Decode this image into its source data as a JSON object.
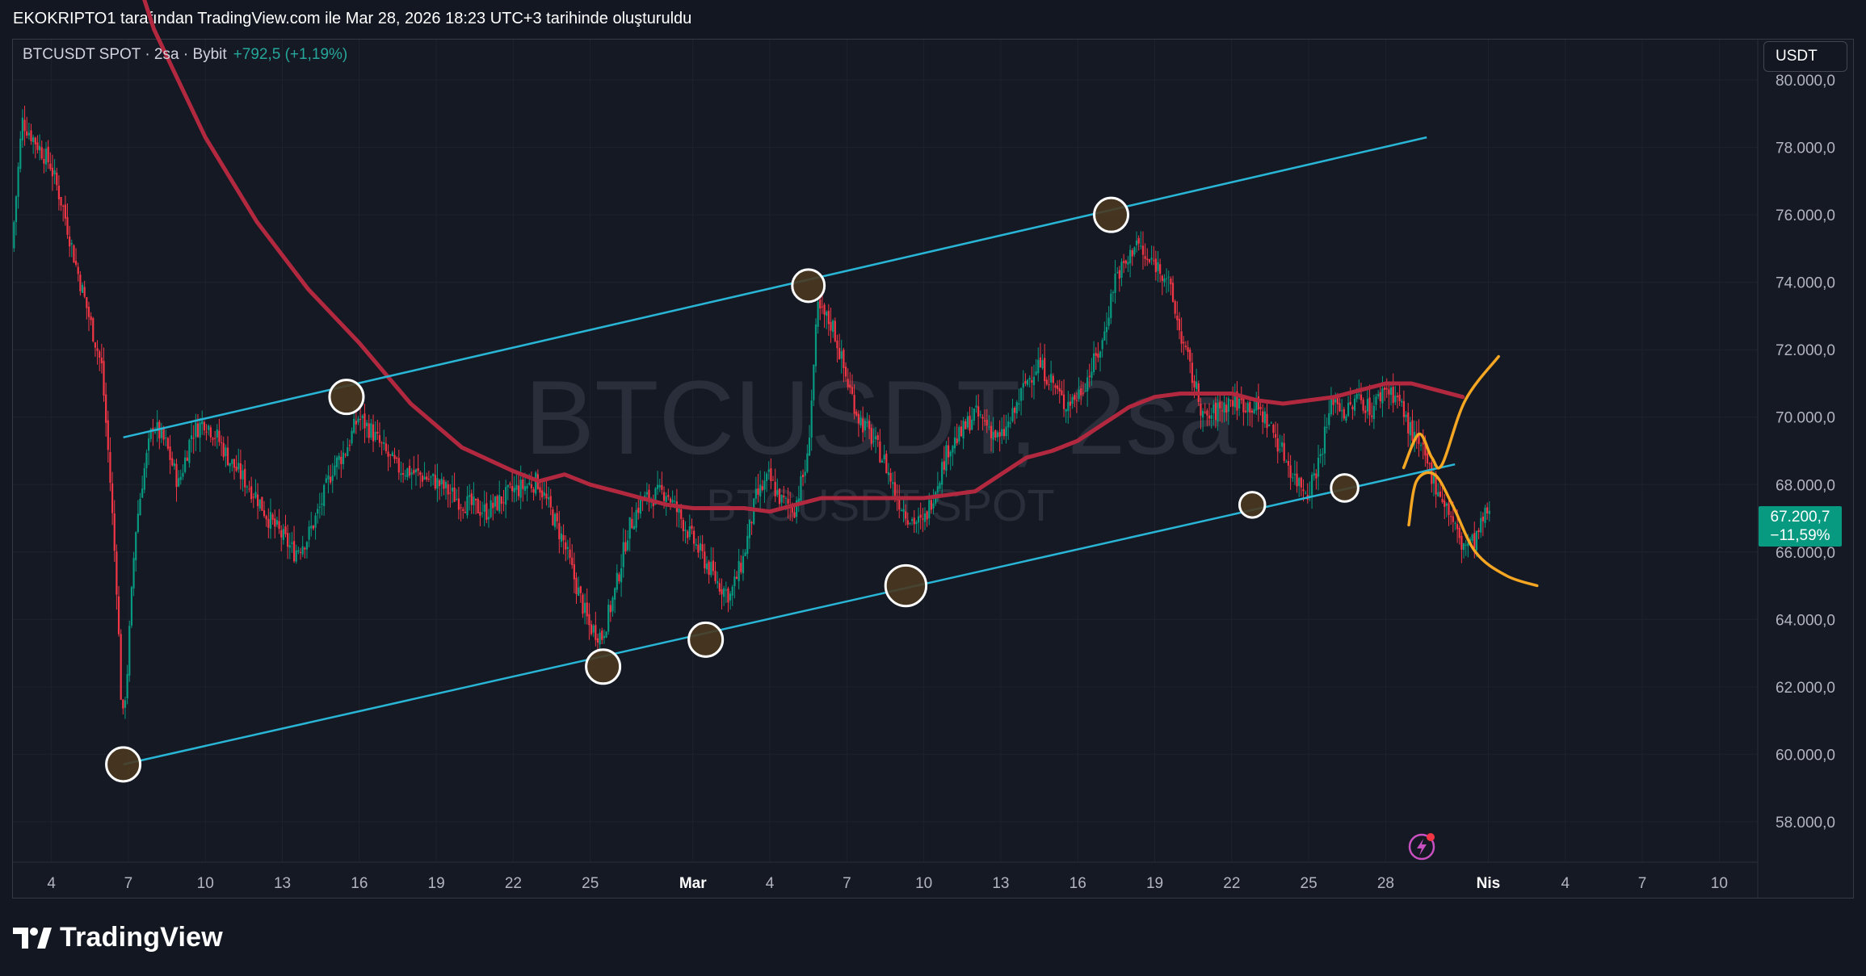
{
  "header": {
    "credit": "EKOKRIPTO1 tarafından TradingView.com ile Mar 28, 2026 18:23 UTC+3 tarihinde oluşturuldu"
  },
  "symbol_bar": {
    "symbol": "BTCUSDT SPOT · 2sa · Bybit",
    "change": "+792,5 (+1,19%)"
  },
  "currency_button": "USDT",
  "last_price": {
    "price": "67.200,7",
    "change_pct": "−11,59%"
  },
  "watermark": {
    "line1": "BTCUSDT, 2sa",
    "line2": "BTCUSDT SPOT"
  },
  "footer": {
    "brand": "TradingView"
  },
  "colors": {
    "background": "#151924",
    "up_candle": "#089981",
    "down_candle": "#f23645",
    "ma_line": "#b2283f",
    "channel_line": "#29b6d6",
    "scenario_curve": "#f5a623",
    "marker_fill": "#4a3820",
    "price_badge": "#089981"
  },
  "chart_data": {
    "type": "candlestick",
    "title": "BTCUSDT, 2sa",
    "y_axis": {
      "ticks": [
        "80.000,0",
        "78.000,0",
        "76.000,0",
        "74.000,0",
        "72.000,0",
        "70.000,0",
        "68.000,0",
        "66.000,0",
        "64.000,0",
        "62.000,0",
        "60.000,0",
        "58.000,0"
      ],
      "tick_values": [
        80000,
        78000,
        76000,
        74000,
        72000,
        70000,
        68000,
        66000,
        64000,
        62000,
        60000,
        58000
      ],
      "range": [
        56800,
        81200
      ]
    },
    "x_axis": {
      "labels": [
        "4",
        "7",
        "10",
        "13",
        "16",
        "19",
        "22",
        "25",
        "Mar",
        "4",
        "7",
        "10",
        "13",
        "16",
        "19",
        "22",
        "25",
        "28",
        "Nis",
        "4",
        "7",
        "10"
      ],
      "bold_labels": [
        "Mar",
        "Nis"
      ],
      "day_index": [
        0,
        3,
        6,
        9,
        12,
        15,
        18,
        21,
        25,
        28,
        31,
        34,
        37,
        40,
        43,
        46,
        49,
        52,
        56,
        59,
        62,
        65
      ],
      "range": [
        -1.5,
        66.5
      ]
    },
    "price_path": [
      [
        -1.5,
        75000
      ],
      [
        -1.1,
        78800
      ],
      [
        -0.6,
        78200
      ],
      [
        0,
        77500
      ],
      [
        0.5,
        76200
      ],
      [
        1,
        74500
      ],
      [
        1.5,
        73000
      ],
      [
        2,
        71500
      ],
      [
        2.3,
        68500
      ],
      [
        2.6,
        64800
      ],
      [
        2.8,
        60800
      ],
      [
        3,
        62500
      ],
      [
        3.3,
        66500
      ],
      [
        3.6,
        68200
      ],
      [
        4,
        69800
      ],
      [
        4.5,
        69200
      ],
      [
        5,
        68000
      ],
      [
        5.5,
        69500
      ],
      [
        6,
        69900
      ],
      [
        6.5,
        69400
      ],
      [
        7,
        68700
      ],
      [
        7.5,
        68200
      ],
      [
        8,
        67700
      ],
      [
        8.5,
        67000
      ],
      [
        9,
        66500
      ],
      [
        9.5,
        66000
      ],
      [
        10,
        66400
      ],
      [
        10.5,
        67300
      ],
      [
        11,
        68500
      ],
      [
        11.5,
        69000
      ],
      [
        12,
        70000
      ],
      [
        12.5,
        69600
      ],
      [
        13,
        69000
      ],
      [
        13.5,
        68500
      ],
      [
        14,
        68400
      ],
      [
        15,
        68100
      ],
      [
        16,
        67500
      ],
      [
        17,
        67200
      ],
      [
        18,
        67800
      ],
      [
        19,
        68100
      ],
      [
        20,
        66300
      ],
      [
        20.5,
        65000
      ],
      [
        21,
        63800
      ],
      [
        21.5,
        63500
      ],
      [
        22,
        64800
      ],
      [
        22.5,
        66600
      ],
      [
        23,
        67500
      ],
      [
        24,
        67800
      ],
      [
        25,
        66400
      ],
      [
        26,
        65100
      ],
      [
        26.5,
        64700
      ],
      [
        27,
        65800
      ],
      [
        27.5,
        67600
      ],
      [
        28,
        68200
      ],
      [
        28.5,
        67500
      ],
      [
        29,
        67300
      ],
      [
        29.5,
        68700
      ],
      [
        29.9,
        73200
      ],
      [
        30.5,
        72700
      ],
      [
        31,
        71200
      ],
      [
        31.5,
        70000
      ],
      [
        32,
        69400
      ],
      [
        32.5,
        68700
      ],
      [
        33,
        67600
      ],
      [
        33.5,
        67000
      ],
      [
        34,
        66800
      ],
      [
        34.4,
        67700
      ],
      [
        35,
        69100
      ],
      [
        35.5,
        69500
      ],
      [
        36,
        70100
      ],
      [
        36.5,
        69800
      ],
      [
        37,
        69300
      ],
      [
        37.5,
        70000
      ],
      [
        38,
        71000
      ],
      [
        38.5,
        71600
      ],
      [
        39,
        71100
      ],
      [
        39.5,
        70400
      ],
      [
        40,
        70600
      ],
      [
        40.5,
        71300
      ],
      [
        41,
        72200
      ],
      [
        41.5,
        74200
      ],
      [
        42,
        74600
      ],
      [
        42.3,
        75300
      ],
      [
        42.7,
        74600
      ],
      [
        43,
        74600
      ],
      [
        43.5,
        74200
      ],
      [
        44,
        72600
      ],
      [
        44.5,
        71200
      ],
      [
        45,
        69900
      ],
      [
        46,
        70500
      ],
      [
        47,
        70300
      ],
      [
        47.5,
        69800
      ],
      [
        48,
        69000
      ],
      [
        48.5,
        68200
      ],
      [
        49,
        67800
      ],
      [
        49.4,
        68600
      ],
      [
        50,
        70600
      ],
      [
        50.5,
        70100
      ],
      [
        51,
        70600
      ],
      [
        51.5,
        70200
      ],
      [
        52,
        70900
      ],
      [
        52.5,
        70600
      ],
      [
        53,
        69600
      ],
      [
        53.5,
        68900
      ],
      [
        54,
        68000
      ],
      [
        54.5,
        67200
      ],
      [
        55,
        66200
      ],
      [
        55.5,
        66300
      ],
      [
        56,
        67200
      ]
    ],
    "moving_average": [
      [
        2.5,
        85000
      ],
      [
        4,
        81500
      ],
      [
        6,
        78300
      ],
      [
        8,
        75800
      ],
      [
        10,
        73800
      ],
      [
        12,
        72200
      ],
      [
        14,
        70400
      ],
      [
        16,
        69100
      ],
      [
        18,
        68400
      ],
      [
        19,
        68100
      ],
      [
        20,
        68300
      ],
      [
        21,
        68000
      ],
      [
        22,
        67800
      ],
      [
        23,
        67600
      ],
      [
        24,
        67400
      ],
      [
        25,
        67300
      ],
      [
        26,
        67300
      ],
      [
        27,
        67300
      ],
      [
        28,
        67200
      ],
      [
        29,
        67400
      ],
      [
        30,
        67600
      ],
      [
        31,
        67600
      ],
      [
        32,
        67600
      ],
      [
        33,
        67600
      ],
      [
        34,
        67600
      ],
      [
        35,
        67700
      ],
      [
        36,
        67800
      ],
      [
        37,
        68300
      ],
      [
        38,
        68800
      ],
      [
        39,
        69000
      ],
      [
        40,
        69300
      ],
      [
        41,
        69800
      ],
      [
        42,
        70300
      ],
      [
        43,
        70600
      ],
      [
        44,
        70700
      ],
      [
        45,
        70700
      ],
      [
        46,
        70700
      ],
      [
        47,
        70500
      ],
      [
        48,
        70400
      ],
      [
        49,
        70500
      ],
      [
        50,
        70600
      ],
      [
        51,
        70800
      ],
      [
        52,
        71000
      ],
      [
        53,
        71000
      ],
      [
        54,
        70800
      ],
      [
        55,
        70600
      ]
    ],
    "channel": {
      "upper": [
        [
          2.8,
          69400
        ],
        [
          53.6,
          78300
        ]
      ],
      "lower": [
        [
          2.8,
          59700
        ],
        [
          54.7,
          68600
        ]
      ]
    },
    "touch_points": [
      {
        "x": 2.8,
        "y": 59700,
        "r": 1
      },
      {
        "x": 11.5,
        "y": 70600,
        "r": 1
      },
      {
        "x": 21.5,
        "y": 62600,
        "r": 1
      },
      {
        "x": 25.5,
        "y": 63400,
        "r": 1
      },
      {
        "x": 29.5,
        "y": 73900,
        "r": 0.95
      },
      {
        "x": 33.3,
        "y": 65000,
        "r": 1.2
      },
      {
        "x": 41.3,
        "y": 76000,
        "r": 1
      },
      {
        "x": 46.8,
        "y": 67400,
        "r": 0.75
      },
      {
        "x": 50.4,
        "y": 67900,
        "r": 0.8
      }
    ],
    "scenario_paths": {
      "bullish": [
        [
          52.7,
          68500
        ],
        [
          53.3,
          69500
        ],
        [
          53.8,
          68800
        ],
        [
          54.2,
          68600
        ],
        [
          55.1,
          70500
        ],
        [
          56.4,
          71800
        ]
      ],
      "bearish": [
        [
          52.9,
          66800
        ],
        [
          53.2,
          68100
        ],
        [
          53.9,
          68300
        ],
        [
          54.6,
          67400
        ],
        [
          55.5,
          66000
        ],
        [
          56.7,
          65300
        ],
        [
          57.9,
          65000
        ]
      ]
    }
  }
}
